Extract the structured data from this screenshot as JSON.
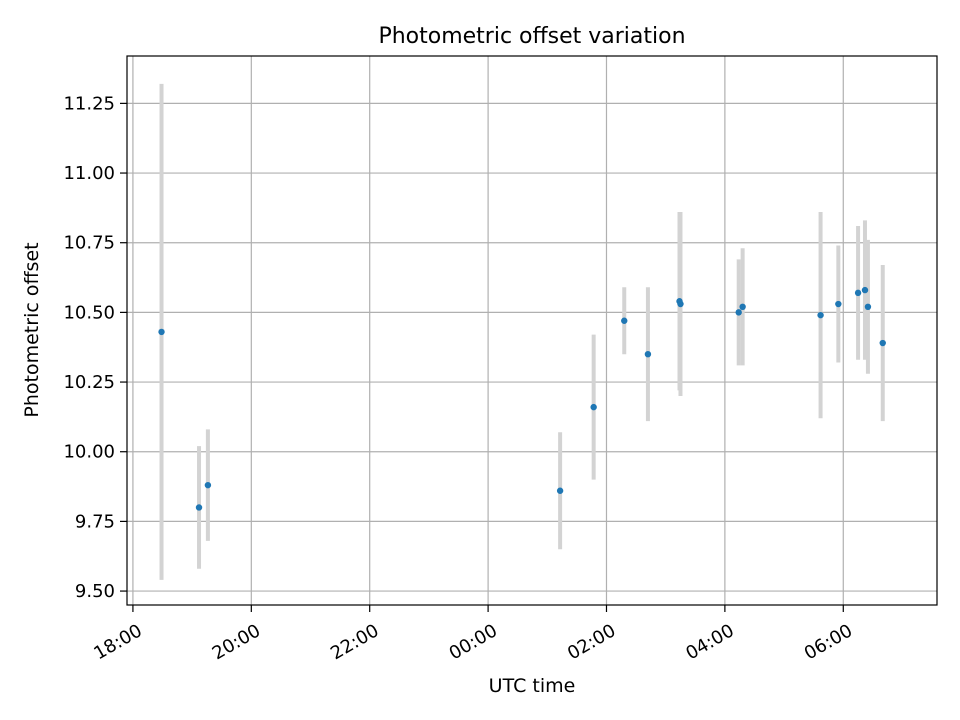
{
  "chart_data": {
    "type": "scatter",
    "title": "Photometric offset variation",
    "xlabel": "UTC time",
    "ylabel": "Photometric offset",
    "x_ticks": [
      "18:00",
      "20:00",
      "22:00",
      "00:00",
      "02:00",
      "04:00",
      "06:00"
    ],
    "y_ticks": [
      "9.50",
      "9.75",
      "10.00",
      "10.25",
      "10.50",
      "10.75",
      "11.00",
      "11.25"
    ],
    "xlim": [
      "17:54",
      "07:35"
    ],
    "ylim": [
      9.45,
      11.42
    ],
    "grid": true,
    "marker_color": "#1f77b4",
    "errorbar_color": "#d3d3d3",
    "points": [
      {
        "time": "18:29",
        "y": 10.43,
        "err": 0.89
      },
      {
        "time": "19:07",
        "y": 9.8,
        "err": 0.22
      },
      {
        "time": "19:16",
        "y": 9.88,
        "err": 0.2
      },
      {
        "time": "01:13",
        "y": 9.86,
        "err": 0.21
      },
      {
        "time": "01:47",
        "y": 10.16,
        "err": 0.26
      },
      {
        "time": "02:18",
        "y": 10.47,
        "err": 0.12
      },
      {
        "time": "02:42",
        "y": 10.35,
        "err": 0.24
      },
      {
        "time": "03:14",
        "y": 10.54,
        "err": 0.32
      },
      {
        "time": "03:15",
        "y": 10.53,
        "err": 0.33
      },
      {
        "time": "04:14",
        "y": 10.5,
        "err": 0.19
      },
      {
        "time": "04:18",
        "y": 10.52,
        "err": 0.21
      },
      {
        "time": "05:37",
        "y": 10.49,
        "err": 0.37
      },
      {
        "time": "05:55",
        "y": 10.53,
        "err": 0.21
      },
      {
        "time": "06:15",
        "y": 10.57,
        "err": 0.24
      },
      {
        "time": "06:22",
        "y": 10.58,
        "err": 0.25
      },
      {
        "time": "06:25",
        "y": 10.52,
        "err": 0.24
      },
      {
        "time": "06:40",
        "y": 10.39,
        "err": 0.28
      }
    ]
  }
}
